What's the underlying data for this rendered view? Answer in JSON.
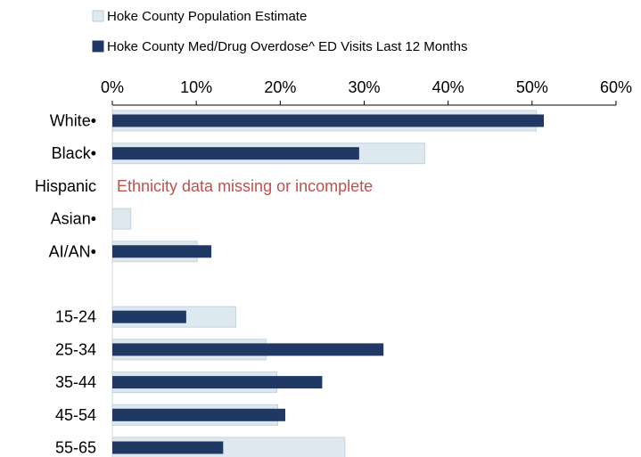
{
  "chart_data": {
    "type": "bar",
    "orientation": "horizontal",
    "categories": [
      "White•",
      "Black•",
      "Hispanic",
      "Asian•",
      "AI/AN•",
      "",
      "15-24",
      "25-34",
      "35-44",
      "45-54",
      "55-65"
    ],
    "series": [
      {
        "name": "Hoke County Population Estimate",
        "color": "#dde8ef",
        "values": [
          50.5,
          37.2,
          null,
          2.2,
          10.1,
          null,
          14.7,
          18.3,
          19.6,
          19.7,
          27.7
        ]
      },
      {
        "name": "Hoke County Med/Drug Overdose^ ED Visits Last 12 Months",
        "color": "#1f3864",
        "values": [
          51.4,
          29.4,
          null,
          null,
          11.8,
          null,
          8.8,
          32.3,
          25.0,
          20.6,
          13.2
        ]
      }
    ],
    "xlim": [
      0,
      60
    ],
    "xticks": [
      0,
      10,
      20,
      30,
      40,
      50,
      60
    ],
    "tick_labels": [
      "0%",
      "10%",
      "20%",
      "30%",
      "40%",
      "50%",
      "60%"
    ],
    "x_axis_position": "top",
    "legend_position": "top-left",
    "grid": false,
    "annotations": [
      {
        "category": "Hispanic",
        "text": "Ethnicity data missing or incomplete",
        "color": "#c0504d"
      }
    ]
  }
}
